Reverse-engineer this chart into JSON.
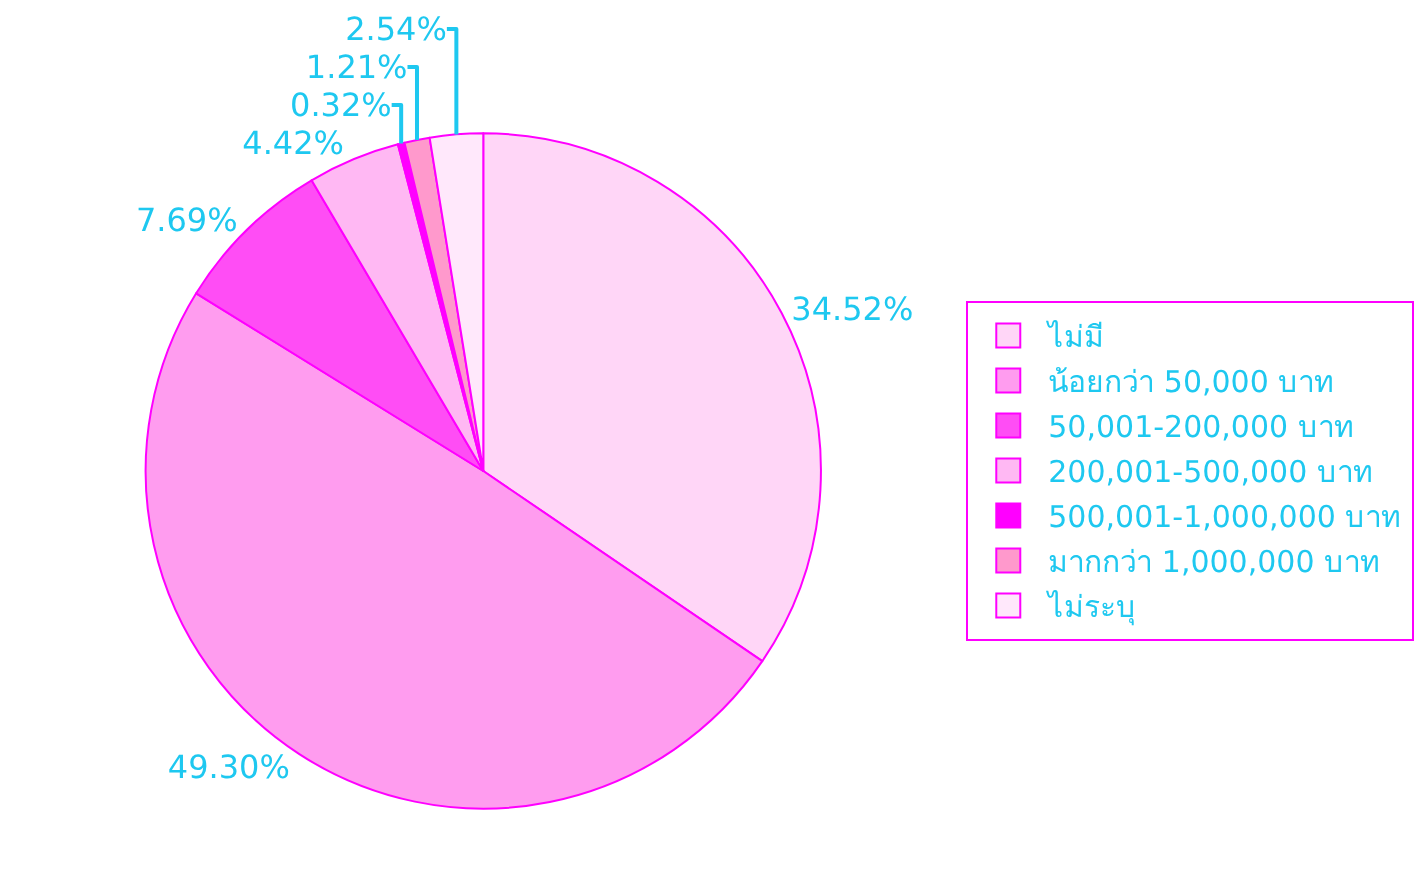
{
  "chart_data": {
    "type": "pie",
    "categories": [
      "ไม่มี",
      "น้อยกว่า 50,000 บาท",
      "50,001-200,000 บาท",
      "200,001-500,000 บาท",
      "500,001-1,000,000 บาท",
      "มากกว่า 1,000,000 บาท",
      "ไม่ระบุ"
    ],
    "values": [
      34.52,
      49.3,
      7.69,
      4.42,
      0.32,
      1.21,
      2.54
    ],
    "value_labels": [
      "34.52%",
      "49.30%",
      "7.69%",
      "4.42%",
      "0.32%",
      "1.21%",
      "2.54%"
    ],
    "colors": [
      "#ffd6f7",
      "#ff9cef",
      "#ff4df5",
      "#ffb8f3",
      "#ff00ff",
      "#ff99cc",
      "#ffe8fb"
    ],
    "legend": "right"
  }
}
